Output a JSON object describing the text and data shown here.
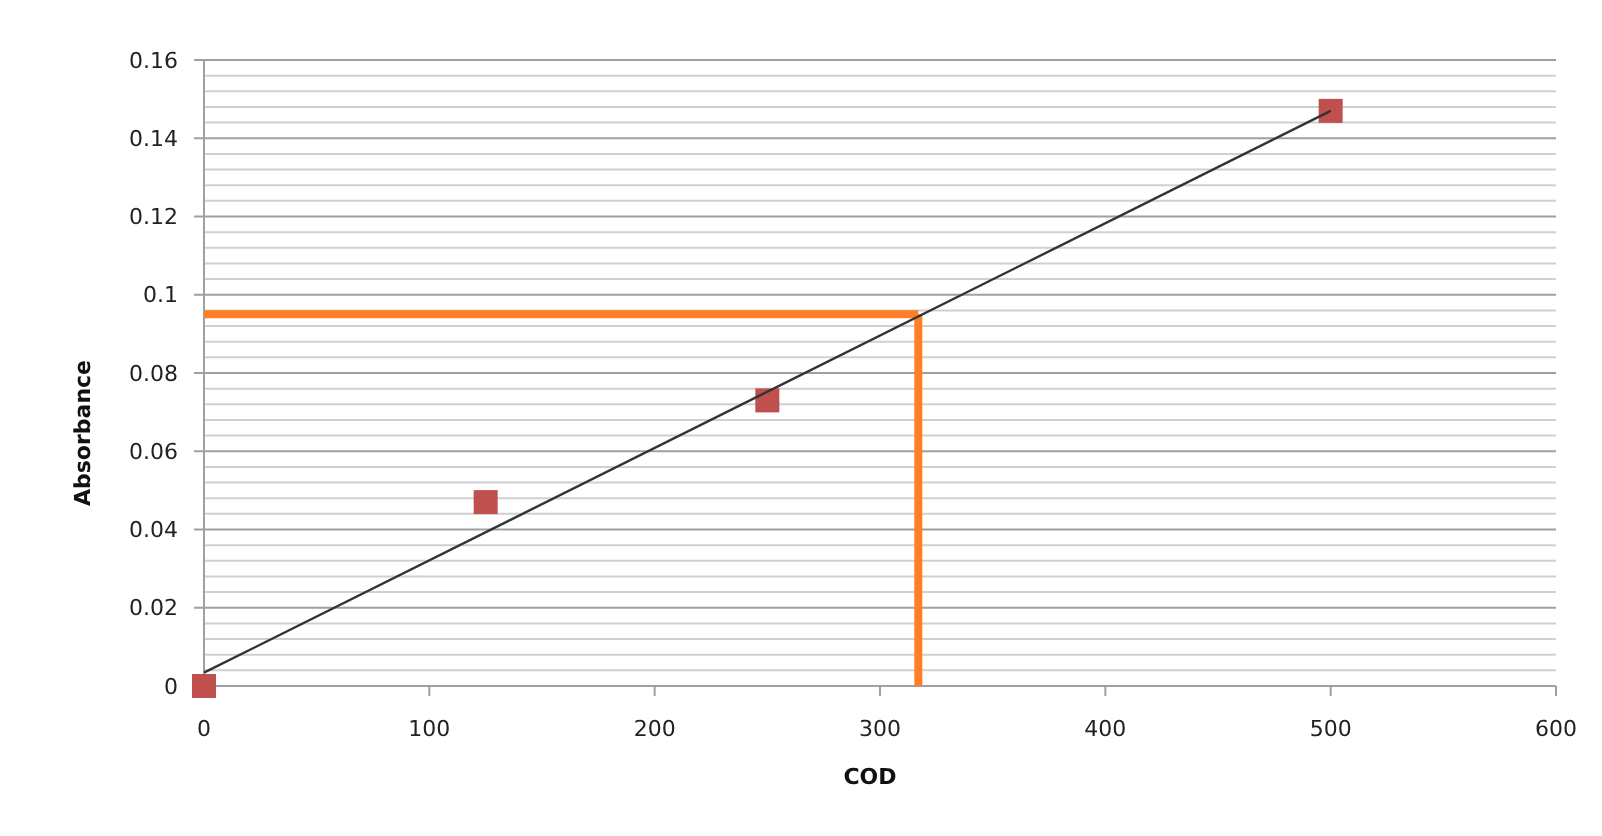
{
  "chart_data": {
    "type": "scatter",
    "xlabel": "COD",
    "ylabel": "Absorbance",
    "xlim": [
      0,
      600
    ],
    "xticks": [
      0,
      100,
      200,
      300,
      400,
      500,
      600
    ],
    "ylim": [
      0,
      0.16
    ],
    "yticks": [
      0,
      {
        "value": 0.004,
        "label": null
      },
      {
        "value": 0.008,
        "label": null
      },
      {
        "value": 0.012,
        "label": null
      },
      {
        "value": 0.016,
        "label": null
      },
      0.02,
      {
        "value": 0.024,
        "label": null
      },
      {
        "value": 0.028,
        "label": null
      },
      {
        "value": 0.032,
        "label": null
      },
      {
        "value": 0.036,
        "label": null
      },
      0.04,
      {
        "value": 0.044,
        "label": null
      },
      {
        "value": 0.048,
        "label": null
      },
      {
        "value": 0.052,
        "label": null
      },
      {
        "value": 0.056,
        "label": null
      },
      0.06,
      {
        "value": 0.064,
        "label": null
      },
      {
        "value": 0.068,
        "label": null
      },
      {
        "value": 0.072,
        "label": null
      },
      {
        "value": 0.076,
        "label": null
      },
      0.08,
      {
        "value": 0.084,
        "label": null
      },
      {
        "value": 0.088,
        "label": null
      },
      {
        "value": 0.092,
        "label": null
      },
      {
        "value": 0.096,
        "label": null
      },
      0.1,
      {
        "value": 0.104,
        "label": null
      },
      {
        "value": 0.108,
        "label": null
      },
      {
        "value": 0.112,
        "label": null
      },
      {
        "value": 0.116,
        "label": null
      },
      0.12,
      {
        "value": 0.124,
        "label": null
      },
      {
        "value": 0.128,
        "label": null
      },
      {
        "value": 0.132,
        "label": null
      },
      {
        "value": 0.136,
        "label": null
      },
      0.14,
      {
        "value": 0.144,
        "label": null
      },
      {
        "value": 0.148,
        "label": null
      },
      {
        "value": 0.152,
        "label": null
      },
      {
        "value": 0.156,
        "label": null
      },
      0.16
    ],
    "grid": "y",
    "series": [
      {
        "color": "#c0504d",
        "marker": "square",
        "x": [
          0,
          125,
          250,
          500
        ],
        "values": [
          0,
          0.047,
          0.073,
          0.147
        ]
      },
      {
        "type": "line",
        "color": "#333333",
        "line_style": "solid",
        "x": [
          0,
          500
        ],
        "values": [
          0.0034,
          0.147
        ]
      }
    ],
    "ref_lines": [
      {
        "axis": "y",
        "value": 0.095,
        "color": "#ff7f27",
        "line_style": "solid"
      },
      {
        "axis": "x",
        "value": 317,
        "color": "#ff7f27",
        "line_style": "solid"
      }
    ]
  }
}
